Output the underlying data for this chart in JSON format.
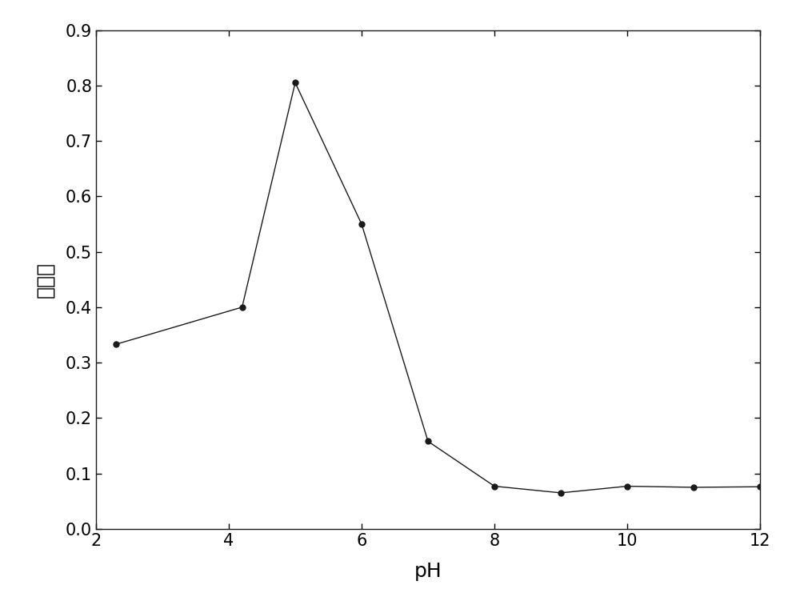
{
  "x": [
    2.3,
    4.2,
    5.0,
    6.0,
    7.0,
    8.0,
    9.0,
    10.0,
    11.0,
    12.0
  ],
  "y": [
    0.333,
    0.4,
    0.805,
    0.55,
    0.158,
    0.077,
    0.065,
    0.077,
    0.075,
    0.076
  ],
  "xlabel": "pH",
  "ylabel": "吸光度",
  "xlim": [
    2,
    12
  ],
  "ylim": [
    0.0,
    0.9
  ],
  "xticks": [
    2,
    4,
    6,
    8,
    10,
    12
  ],
  "yticks": [
    0.0,
    0.1,
    0.2,
    0.3,
    0.4,
    0.5,
    0.6,
    0.7,
    0.8,
    0.9
  ],
  "line_color": "#1a1a1a",
  "marker": "o",
  "marker_size": 5,
  "marker_facecolor": "#1a1a1a",
  "linewidth": 1.0,
  "background_color": "#ffffff",
  "xlabel_fontsize": 18,
  "ylabel_fontsize": 18,
  "tick_fontsize": 15
}
